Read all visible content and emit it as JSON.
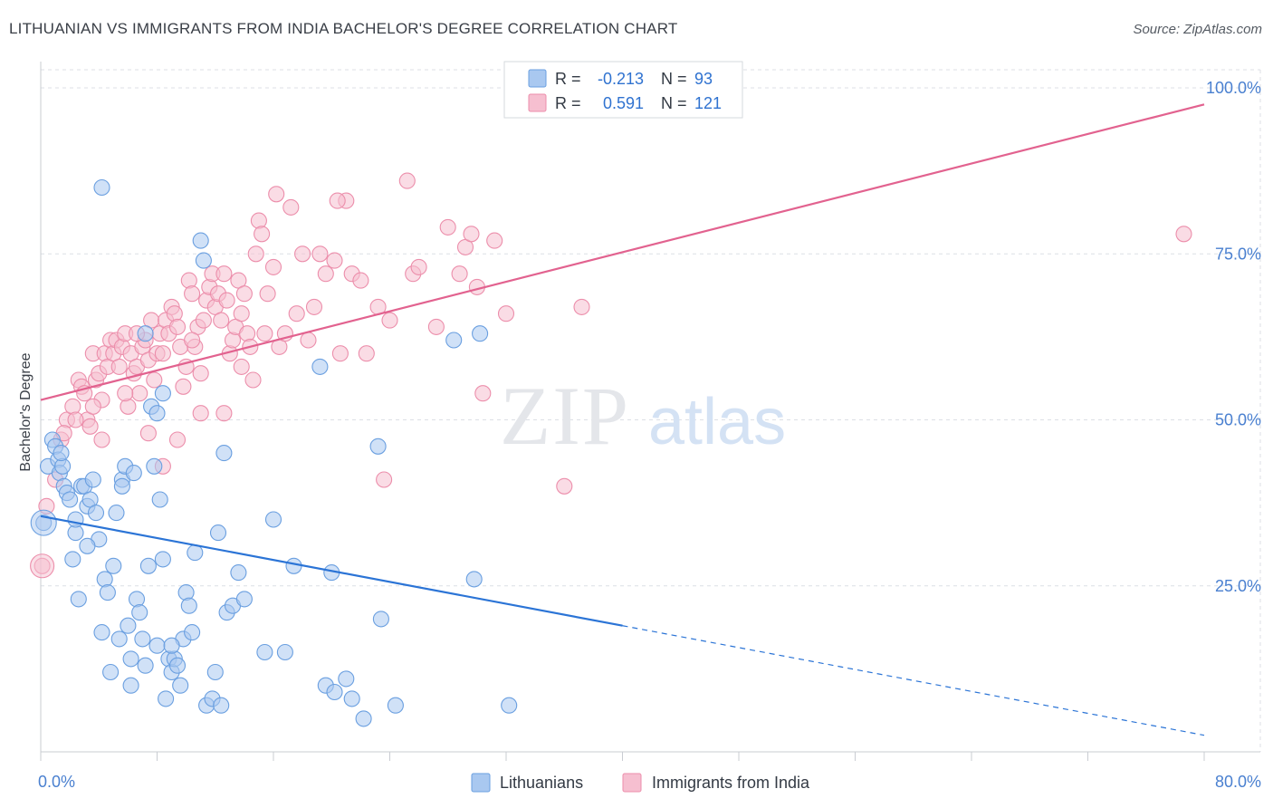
{
  "title": "LITHUANIAN VS IMMIGRANTS FROM INDIA BACHELOR'S DEGREE CORRELATION CHART",
  "source": "Source: ZipAtlas.com",
  "watermark": {
    "zip": "ZIP",
    "atlas": "atlas"
  },
  "colors": {
    "lithuanians_fill": "#a9c8f0",
    "lithuanians_stroke": "#6a9fe0",
    "lithuanians_line": "#2b74d6",
    "india_fill": "#f6bfd0",
    "india_stroke": "#ec8eab",
    "india_line": "#e2628f",
    "tick_label": "#4a80d0",
    "grid": "#dcdfe5"
  },
  "legend_top": {
    "rows": [
      {
        "r_label": "R =",
        "r_value": "-0.213",
        "n_label": "N =",
        "n_value": "93"
      },
      {
        "r_label": "R =",
        "r_value": "0.591",
        "n_label": "N =",
        "n_value": "121"
      }
    ]
  },
  "legend_bottom": {
    "items": [
      "Lithuanians",
      "Immigrants from India"
    ]
  },
  "chart_data": {
    "type": "scatter",
    "title": "LITHUANIAN VS IMMIGRANTS FROM INDIA BACHELOR'S DEGREE CORRELATION CHART",
    "xlabel": "",
    "ylabel": "Bachelor's Degree",
    "xlim": [
      0,
      80
    ],
    "ylim": [
      0,
      100
    ],
    "x_tick_labels": [
      "0.0%",
      "80.0%"
    ],
    "y_ticks": [
      25,
      50,
      75,
      100
    ],
    "y_tick_labels": [
      "25.0%",
      "50.0%",
      "75.0%",
      "100.0%"
    ],
    "grid": true,
    "legend_position": "bottom",
    "series": [
      {
        "name": "Lithuanians",
        "r": -0.213,
        "n": 93,
        "trend": {
          "x_start": 0,
          "y_start": 35.5,
          "x_solid_end": 40,
          "y_solid_end": 19.0,
          "x_end": 80,
          "y_end": 2.5
        },
        "points": [
          [
            0.2,
            34.5
          ],
          [
            0.5,
            43
          ],
          [
            0.8,
            47
          ],
          [
            1,
            46
          ],
          [
            1.2,
            44
          ],
          [
            1.3,
            42
          ],
          [
            1.5,
            43
          ],
          [
            1.6,
            40
          ],
          [
            1.8,
            39
          ],
          [
            2,
            38
          ],
          [
            2.2,
            29
          ],
          [
            2.4,
            33
          ],
          [
            2.6,
            23
          ],
          [
            2.8,
            40
          ],
          [
            3,
            40
          ],
          [
            3.2,
            37
          ],
          [
            3.4,
            38
          ],
          [
            3.6,
            41
          ],
          [
            3.8,
            36
          ],
          [
            4,
            32
          ],
          [
            4.2,
            18
          ],
          [
            4.4,
            26
          ],
          [
            4.6,
            24
          ],
          [
            4.8,
            12
          ],
          [
            5,
            28
          ],
          [
            5.2,
            36
          ],
          [
            5.4,
            17
          ],
          [
            5.6,
            41
          ],
          [
            5.8,
            43
          ],
          [
            6,
            19
          ],
          [
            6.2,
            14
          ],
          [
            6.4,
            42
          ],
          [
            6.6,
            23
          ],
          [
            6.8,
            21
          ],
          [
            7,
            17
          ],
          [
            7.2,
            13
          ],
          [
            7.4,
            28
          ],
          [
            7.6,
            52
          ],
          [
            7.8,
            43
          ],
          [
            8,
            16
          ],
          [
            8.2,
            38
          ],
          [
            8.4,
            29
          ],
          [
            8.6,
            8
          ],
          [
            8.8,
            14
          ],
          [
            9,
            12
          ],
          [
            9.2,
            14
          ],
          [
            9.4,
            13
          ],
          [
            9.6,
            10
          ],
          [
            9.8,
            17
          ],
          [
            10,
            24
          ],
          [
            10.2,
            22
          ],
          [
            10.4,
            18
          ],
          [
            11,
            77
          ],
          [
            11.2,
            74
          ],
          [
            11.4,
            7
          ],
          [
            12,
            12
          ],
          [
            12.2,
            33
          ],
          [
            12.6,
            45
          ],
          [
            12.8,
            21
          ],
          [
            13.2,
            22
          ],
          [
            13.6,
            27
          ],
          [
            15.4,
            15
          ],
          [
            16,
            35
          ],
          [
            16.8,
            15
          ],
          [
            17.4,
            28
          ],
          [
            19.2,
            58
          ],
          [
            19.6,
            10
          ],
          [
            20,
            27
          ],
          [
            20.2,
            9
          ],
          [
            21,
            11
          ],
          [
            21.4,
            8
          ],
          [
            22.2,
            5
          ],
          [
            23.2,
            46
          ],
          [
            23.4,
            20
          ],
          [
            24.4,
            7
          ],
          [
            28.4,
            62
          ],
          [
            29.8,
            26
          ],
          [
            30.2,
            63
          ],
          [
            32.2,
            7
          ],
          [
            10.6,
            30
          ],
          [
            11.8,
            8
          ],
          [
            12.4,
            7
          ],
          [
            14,
            23
          ],
          [
            8.4,
            54
          ],
          [
            7.2,
            63
          ],
          [
            4.2,
            85
          ],
          [
            3.2,
            31
          ],
          [
            2.4,
            35
          ],
          [
            1.4,
            45
          ],
          [
            6.2,
            10
          ],
          [
            9,
            16
          ],
          [
            5.6,
            40
          ],
          [
            8,
            51
          ]
        ]
      },
      {
        "name": "Immigrants from India",
        "r": 0.591,
        "n": 121,
        "trend": {
          "x_start": 0,
          "y_start": 53.0,
          "x_end": 80,
          "y_end": 97.5
        },
        "points": [
          [
            0.1,
            28
          ],
          [
            0.4,
            37
          ],
          [
            1,
            41
          ],
          [
            1.4,
            47
          ],
          [
            1.8,
            50
          ],
          [
            2.2,
            52
          ],
          [
            2.6,
            56
          ],
          [
            2.8,
            55
          ],
          [
            3,
            54
          ],
          [
            3.2,
            50
          ],
          [
            3.6,
            60
          ],
          [
            3.8,
            56
          ],
          [
            4,
            57
          ],
          [
            4.2,
            53
          ],
          [
            4.4,
            60
          ],
          [
            4.6,
            58
          ],
          [
            4.8,
            62
          ],
          [
            5,
            60
          ],
          [
            5.2,
            62
          ],
          [
            5.4,
            58
          ],
          [
            5.6,
            61
          ],
          [
            5.8,
            63
          ],
          [
            6,
            52
          ],
          [
            6.2,
            60
          ],
          [
            6.4,
            57
          ],
          [
            6.6,
            58
          ],
          [
            6.8,
            54
          ],
          [
            7,
            61
          ],
          [
            7.2,
            62
          ],
          [
            7.4,
            59
          ],
          [
            7.6,
            65
          ],
          [
            7.8,
            56
          ],
          [
            8,
            60
          ],
          [
            8.2,
            63
          ],
          [
            8.4,
            60
          ],
          [
            8.6,
            65
          ],
          [
            8.8,
            63
          ],
          [
            9,
            67
          ],
          [
            9.2,
            66
          ],
          [
            9.4,
            64
          ],
          [
            9.6,
            61
          ],
          [
            9.8,
            55
          ],
          [
            10,
            58
          ],
          [
            10.2,
            71
          ],
          [
            10.4,
            69
          ],
          [
            10.6,
            61
          ],
          [
            10.8,
            64
          ],
          [
            11,
            57
          ],
          [
            11.2,
            65
          ],
          [
            11.4,
            68
          ],
          [
            11.6,
            70
          ],
          [
            11.8,
            72
          ],
          [
            12,
            67
          ],
          [
            12.2,
            69
          ],
          [
            12.4,
            65
          ],
          [
            12.6,
            72
          ],
          [
            12.8,
            68
          ],
          [
            13,
            60
          ],
          [
            13.2,
            62
          ],
          [
            13.4,
            64
          ],
          [
            13.6,
            71
          ],
          [
            13.8,
            66
          ],
          [
            14,
            69
          ],
          [
            14.2,
            63
          ],
          [
            14.4,
            61
          ],
          [
            14.6,
            56
          ],
          [
            14.8,
            75
          ],
          [
            15,
            80
          ],
          [
            15.2,
            78
          ],
          [
            15.4,
            63
          ],
          [
            15.6,
            69
          ],
          [
            16,
            73
          ],
          [
            16.4,
            61
          ],
          [
            16.8,
            63
          ],
          [
            17.2,
            82
          ],
          [
            17.6,
            66
          ],
          [
            18,
            75
          ],
          [
            18.4,
            62
          ],
          [
            19.2,
            75
          ],
          [
            19.6,
            72
          ],
          [
            20.2,
            74
          ],
          [
            20.6,
            60
          ],
          [
            21,
            83
          ],
          [
            21.4,
            72
          ],
          [
            22,
            71
          ],
          [
            22.4,
            60
          ],
          [
            23.2,
            67
          ],
          [
            23.6,
            41
          ],
          [
            24,
            65
          ],
          [
            25.2,
            86
          ],
          [
            25.6,
            72
          ],
          [
            26,
            73
          ],
          [
            27.2,
            64
          ],
          [
            28,
            79
          ],
          [
            28.8,
            72
          ],
          [
            29.2,
            76
          ],
          [
            29.6,
            78
          ],
          [
            30,
            70
          ],
          [
            30.4,
            54
          ],
          [
            31.2,
            77
          ],
          [
            32,
            66
          ],
          [
            36,
            40
          ],
          [
            37.2,
            67
          ],
          [
            78.6,
            78
          ],
          [
            3.4,
            49
          ],
          [
            4.2,
            47
          ],
          [
            1.6,
            48
          ],
          [
            2.4,
            50
          ],
          [
            6.6,
            63
          ],
          [
            8.4,
            43
          ],
          [
            9.4,
            47
          ],
          [
            11,
            51
          ],
          [
            12.6,
            51
          ],
          [
            13.8,
            58
          ],
          [
            5.8,
            54
          ],
          [
            3.6,
            52
          ],
          [
            10.4,
            62
          ],
          [
            16.2,
            84
          ],
          [
            18.8,
            67
          ],
          [
            7.4,
            48
          ],
          [
            20.4,
            83
          ]
        ]
      }
    ]
  }
}
